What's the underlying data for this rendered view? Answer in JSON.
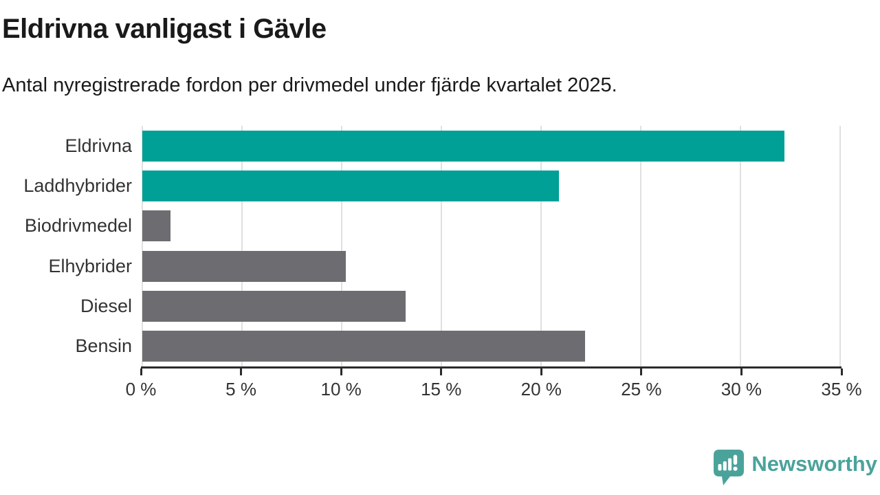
{
  "header": {
    "title": "Eldrivna vanligast i Gävle",
    "subtitle": "Antal nyregistrerade fordon per drivmedel under fjärde kvartalet 2025."
  },
  "chart_data": {
    "type": "bar",
    "orientation": "horizontal",
    "title": "Eldrivna vanligast i Gävle",
    "subtitle": "Antal nyregistrerade fordon per drivmedel under fjärde kvartalet 2025.",
    "categories": [
      "Eldrivna",
      "Laddhybrider",
      "Biodrivmedel",
      "Elhybrider",
      "Diesel",
      "Bensin"
    ],
    "values": [
      32.2,
      20.9,
      1.4,
      10.2,
      13.2,
      22.2
    ],
    "unit": "%",
    "xlabel": "",
    "ylabel": "",
    "xlim": [
      0,
      35
    ],
    "x_tick_values": [
      0,
      5,
      10,
      15,
      20,
      25,
      30,
      35
    ],
    "x_tick_labels": [
      "0 %",
      "5 %",
      "10 %",
      "15 %",
      "20 %",
      "25 %",
      "30 %",
      "35 %"
    ],
    "bar_colors": [
      "#00a096",
      "#00a096",
      "#6d6d71",
      "#6d6d71",
      "#6d6d71",
      "#6d6d71"
    ],
    "grid": true,
    "legend": false
  },
  "branding": {
    "wordmark": "Newsworthy",
    "logo_icon": "newsworthy-speech-bubble-bar-chart-icon",
    "accent_color": "#4aa39b"
  },
  "colors": {
    "highlight_bar": "#00a096",
    "default_bar": "#6d6d71",
    "axis": "#2b2b2b",
    "gridline": "#e0e0e0",
    "tick_text": "#333333",
    "title_text": "#1a1a1a",
    "background": "#ffffff"
  }
}
